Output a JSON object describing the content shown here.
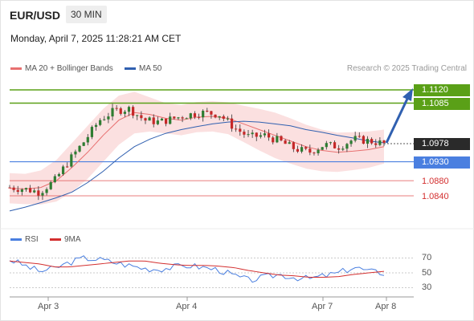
{
  "header": {
    "pair": "EUR/USD",
    "timeframe": "30 MIN",
    "timestamp": "Monday, April 7, 2025 11:28:21 AM CET"
  },
  "legend": {
    "ma20_label": "MA 20 + Bollinger Bands",
    "ma50_label": "MA 50",
    "rsi_label": "RSI",
    "ma9_label": "9MA",
    "credit": "Research © 2025 Trading Central"
  },
  "colors": {
    "resistance": "#5aa017",
    "support": "#4a7fe0",
    "minor_support": "#e05050",
    "current_price_bg": "#2a2a2a",
    "ma20": "#e87070",
    "ma50": "#3060b0",
    "bollinger_fill": "#fadada",
    "arrow": "#3060b0",
    "candle_up": "#2e7d32",
    "candle_down": "#c62828",
    "rsi": "#4a7fe0",
    "rsi_ma9": "#d32f2f"
  },
  "levels": {
    "r2": "1.1120",
    "r1": "1.1085",
    "current": "1.0978",
    "s1": "1.0930",
    "s2": "1.0880",
    "s3": "1.0840"
  },
  "x_axis": [
    "Apr 3",
    "Apr 4",
    "Apr 7",
    "Apr 8"
  ],
  "rsi_axis": [
    "70",
    "50",
    "30"
  ],
  "chart_data": [
    {
      "type": "line",
      "title": "EUR/USD 30 MIN",
      "ylim": [
        1.0765,
        1.1135
      ],
      "levels": [
        1.112,
        1.1085,
        1.0978,
        1.093,
        1.088,
        1.084
      ],
      "x_ticks": [
        "Apr 3",
        "Apr 4",
        "Apr 7",
        "Apr 8"
      ],
      "series": [
        {
          "name": "MA 20 + Bollinger Bands",
          "values": [
            1.086,
            1.0858,
            1.0862,
            1.088,
            1.0915,
            1.0955,
            1.1,
            1.104,
            1.106,
            1.1055,
            1.1045,
            1.104,
            1.1048,
            1.105,
            1.1045,
            1.103,
            1.1015,
            1.1,
            1.0985,
            1.097,
            1.096,
            1.0955,
            1.0958,
            1.0962,
            1.097
          ]
        },
        {
          "name": "MA 50",
          "values": [
            1.08,
            1.081,
            1.0822,
            1.0835,
            1.085,
            1.0875,
            1.0905,
            1.094,
            1.097,
            1.099,
            1.1005,
            1.1015,
            1.1023,
            1.103,
            1.1035,
            1.1037,
            1.1035,
            1.103,
            1.1025,
            1.1015,
            1.1008,
            1.1,
            1.0993,
            1.0985,
            1.098
          ]
        }
      ],
      "close": [
        1.0862,
        1.0858,
        1.085,
        1.088,
        1.0935,
        1.0985,
        1.104,
        1.1065,
        1.107,
        1.104,
        1.1035,
        1.1045,
        1.1055,
        1.106,
        1.1055,
        1.102,
        1.0995,
        1.1,
        1.0985,
        1.0965,
        1.0955,
        1.0975,
        1.097,
        1.099,
        1.0985,
        1.0978
      ]
    },
    {
      "type": "line",
      "title": "RSI",
      "ylim": [
        25,
        75
      ],
      "y_ticks": [
        70,
        50,
        30
      ],
      "series": [
        {
          "name": "RSI",
          "values": [
            68,
            60,
            52,
            56,
            64,
            70,
            68,
            64,
            60,
            56,
            55,
            58,
            60,
            57,
            54,
            46,
            40,
            44,
            48,
            44,
            42,
            46,
            50,
            58,
            52,
            50
          ]
        },
        {
          "name": "9MA",
          "values": [
            66,
            64,
            62,
            58,
            58,
            60,
            62,
            64,
            66,
            66,
            63,
            61,
            60,
            60,
            59,
            57,
            53,
            50,
            47,
            46,
            44,
            44,
            45,
            48,
            50,
            52
          ]
        }
      ]
    }
  ]
}
